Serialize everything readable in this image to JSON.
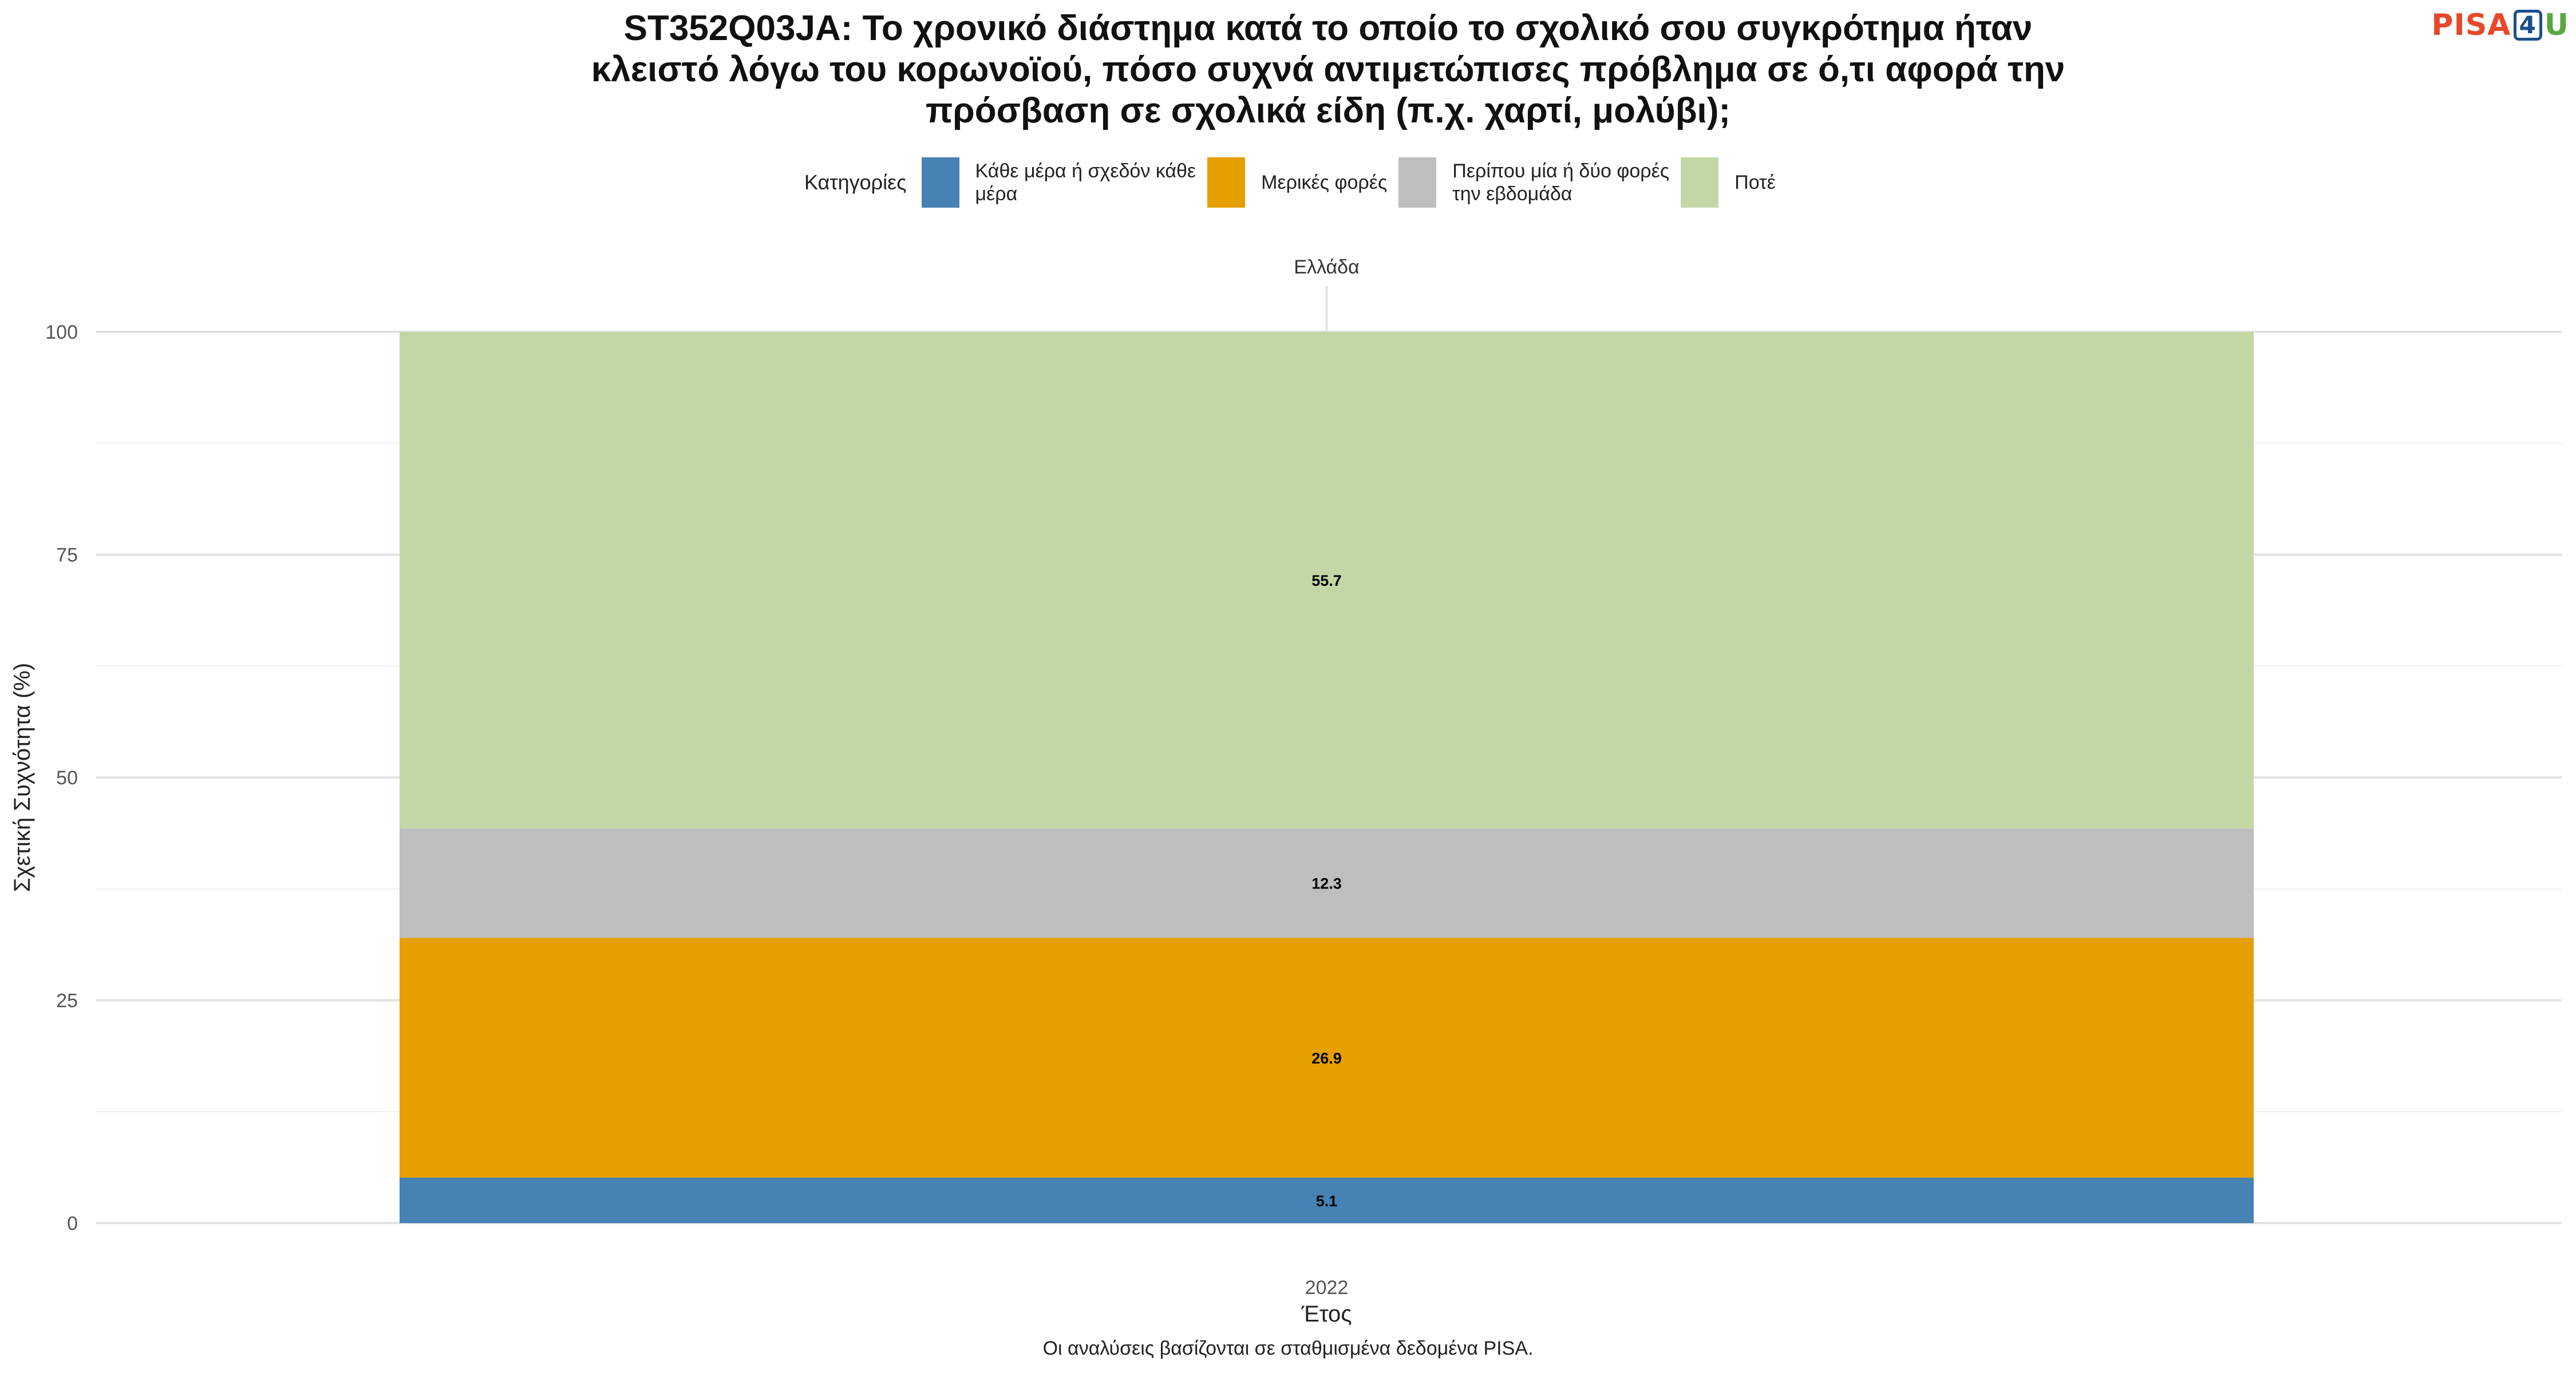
{
  "title_lines": [
    "ST352Q03JA: Το χρονικό διάστημα κατά το οποίο το σχολικό σου συγκρότημα ήταν",
    "κλειστό λόγω του κορωνοϊού, πόσο συχνά αντιμετώπισες πρόβλημα σε ό,τι αφορά την",
    "πρόσβαση σε σχολικά είδη (π.χ. χαρτί, μολύβι);"
  ],
  "logo": {
    "pisa": "PISA",
    "four": "4",
    "u": "U"
  },
  "legend": {
    "title": "Κατηγορίες",
    "items": [
      {
        "lines": [
          "Κάθε μέρα ή σχεδόν κάθε",
          "μέρα"
        ],
        "color": "#4682b4"
      },
      {
        "lines": [
          "Μερικές φορές"
        ],
        "color": "#e69f00"
      },
      {
        "lines": [
          "Περίπου μία ή δύο φορές",
          "την εβδομάδα"
        ],
        "color": "#bebebe"
      },
      {
        "lines": [
          "Ποτέ"
        ],
        "color": "#c3d7a6"
      }
    ]
  },
  "caption": "Οι αναλύσεις βασίζονται σε σταθμισμένα δεδομένα PISA.",
  "chart_data": {
    "type": "bar",
    "stacked": true,
    "facet": "Ελλάδα",
    "categories": [
      "2022"
    ],
    "xlabel": "Έτος",
    "ylabel": "Σχετική Συχνότητα (%)",
    "ylim": [
      0,
      100
    ],
    "yticks": [
      0,
      25,
      50,
      75,
      100
    ],
    "grid": true,
    "legend_position": "top",
    "series": [
      {
        "name": "Κάθε μέρα ή σχεδόν κάθε μέρα",
        "values": [
          5.1
        ],
        "labels": [
          "5.1"
        ],
        "color": "#4682b4"
      },
      {
        "name": "Μερικές φορές",
        "values": [
          26.9
        ],
        "labels": [
          "26.9"
        ],
        "color": "#e69f00"
      },
      {
        "name": "Περίπου μία ή δύο φορές την εβδομάδα",
        "values": [
          12.3
        ],
        "labels": [
          "12.3"
        ],
        "color": "#bebebe"
      },
      {
        "name": "Ποτέ",
        "values": [
          55.7
        ],
        "labels": [
          "55.7"
        ],
        "color": "#c3d7a6"
      }
    ]
  }
}
